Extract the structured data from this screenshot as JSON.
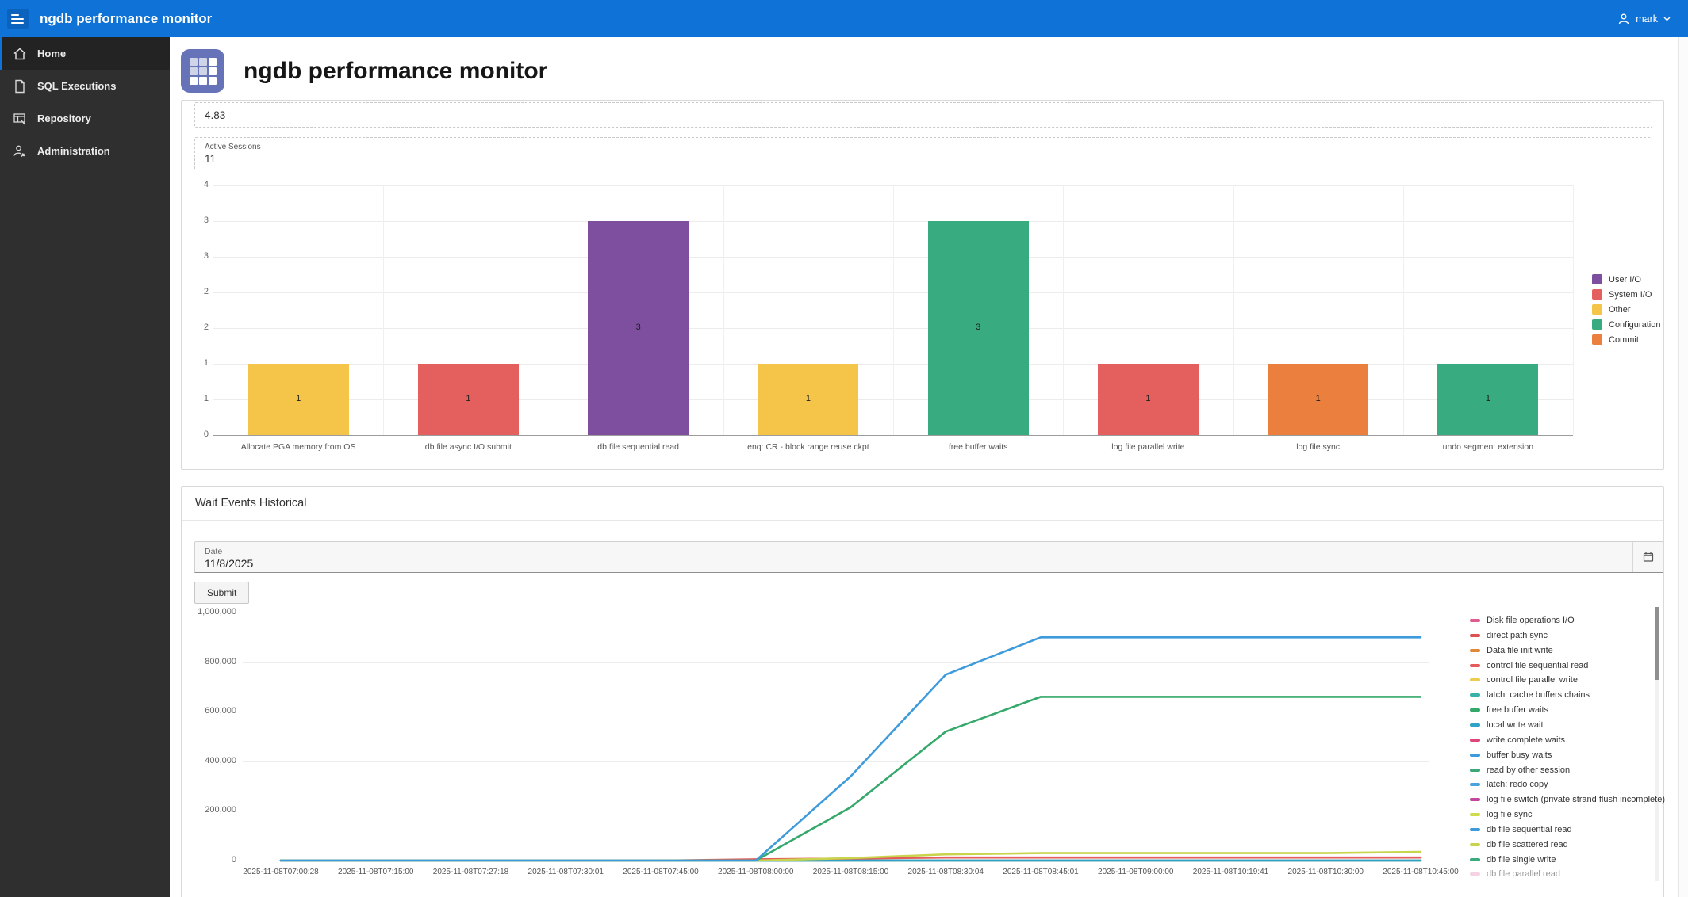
{
  "header": {
    "app_title": "ngdb performance monitor",
    "user": "mark"
  },
  "sidebar": {
    "items": [
      {
        "label": "Home",
        "icon": "home-icon",
        "active": true
      },
      {
        "label": "SQL Executions",
        "icon": "document-icon",
        "active": false
      },
      {
        "label": "Repository",
        "icon": "table-icon",
        "active": false
      },
      {
        "label": "Administration",
        "icon": "admin-user-icon",
        "active": false
      }
    ]
  },
  "page": {
    "title": "ngdb performance monitor",
    "icon": "grid-icon"
  },
  "metrics": {
    "top_box_value": "4.83",
    "active_sessions_label": "Active Sessions",
    "active_sessions_value": "11"
  },
  "wait_events": {
    "section_title": "Wait Events Historical",
    "date_label": "Date",
    "date_value": "11/8/2025",
    "calendar_icon": "calendar-icon",
    "submit_label": "Submit"
  },
  "colors": {
    "header_blue": "#0e72d6",
    "app_tile": "#6673b8",
    "sidebar_bg": "#2f2f2f"
  },
  "chart_data": [
    {
      "type": "bar",
      "title": "",
      "categories": [
        "Allocate PGA memory from OS",
        "db file async I/O submit",
        "db file sequential read",
        "enq: CR - block range reuse ckpt",
        "free buffer waits",
        "log file parallel write",
        "log file sync",
        "undo segment extension"
      ],
      "values": [
        1,
        1,
        3,
        1,
        3,
        1,
        1,
        1
      ],
      "groups": [
        "Other",
        "System I/O",
        "User I/O",
        "Other",
        "Configuration",
        "System I/O",
        "Commit",
        "Configuration"
      ],
      "ylim": [
        0,
        3.5
      ],
      "ytick_labels_top_to_bottom": [
        "4",
        "3",
        "3",
        "2",
        "2",
        "1",
        "1",
        "0"
      ],
      "grid": true,
      "legend_position": "right",
      "legend": [
        {
          "label": "User I/O",
          "color": "#7E4F9E"
        },
        {
          "label": "System I/O",
          "color": "#E4605E"
        },
        {
          "label": "Other",
          "color": "#F5C54A"
        },
        {
          "label": "Configuration",
          "color": "#38AB80"
        },
        {
          "label": "Commit",
          "color": "#EB7F3E"
        }
      ]
    },
    {
      "type": "line",
      "title": "",
      "x": [
        "2025-11-08T07:00:28",
        "2025-11-08T07:15:00",
        "2025-11-08T07:27:18",
        "2025-11-08T07:30:01",
        "2025-11-08T07:45:00",
        "2025-11-08T08:00:00",
        "2025-11-08T08:15:00",
        "2025-11-08T08:30:04",
        "2025-11-08T08:45:01",
        "2025-11-08T09:00:00",
        "2025-11-08T10:19:41",
        "2025-11-08T10:30:00",
        "2025-11-08T10:45:00"
      ],
      "ylim": [
        0,
        1000000
      ],
      "ytick_labels_top_to_bottom": [
        "1,000,000",
        "800,000",
        "600,000",
        "400,000",
        "200,000",
        "0"
      ],
      "grid": true,
      "legend_position": "right",
      "legend_scrollbar": true,
      "series": [
        {
          "name": "Disk file operations I/O",
          "color": "#E05C8E",
          "values": [
            0,
            0,
            0,
            0,
            0,
            0,
            0,
            0,
            0,
            0,
            0,
            0,
            0
          ]
        },
        {
          "name": "direct path sync",
          "color": "#DE5151",
          "values": [
            0,
            0,
            0,
            0,
            0,
            0,
            0,
            0,
            0,
            0,
            0,
            0,
            0
          ]
        },
        {
          "name": "Data file init write",
          "color": "#E2883B",
          "values": [
            0,
            0,
            0,
            0,
            0,
            0,
            0,
            0,
            0,
            0,
            0,
            0,
            0
          ]
        },
        {
          "name": "control file sequential read",
          "color": "#E45C5C",
          "values": [
            0,
            0,
            0,
            0,
            0,
            5000,
            8000,
            12000,
            12000,
            12000,
            12000,
            12000,
            12000
          ]
        },
        {
          "name": "control file parallel write",
          "color": "#EDCB4E",
          "values": [
            0,
            0,
            0,
            0,
            0,
            0,
            0,
            0,
            0,
            0,
            0,
            0,
            0
          ]
        },
        {
          "name": "latch: cache buffers chains",
          "color": "#38B1A8",
          "values": [
            0,
            0,
            0,
            0,
            0,
            0,
            0,
            0,
            0,
            0,
            0,
            0,
            0
          ]
        },
        {
          "name": "free buffer waits",
          "color": "#35A86B",
          "values": [
            0,
            0,
            0,
            0,
            0,
            0,
            215000,
            520000,
            660000,
            660000,
            660000,
            660000,
            660000
          ]
        },
        {
          "name": "local write wait",
          "color": "#2EA3C7",
          "values": [
            0,
            0,
            0,
            0,
            0,
            0,
            0,
            0,
            0,
            0,
            0,
            0,
            0
          ]
        },
        {
          "name": "write complete waits",
          "color": "#E04778",
          "values": [
            0,
            0,
            0,
            0,
            0,
            0,
            0,
            0,
            0,
            0,
            0,
            0,
            0
          ]
        },
        {
          "name": "buffer busy waits",
          "color": "#3E9BDB",
          "values": [
            0,
            0,
            0,
            0,
            0,
            0,
            0,
            0,
            0,
            0,
            0,
            0,
            0
          ]
        },
        {
          "name": "read by other session",
          "color": "#3CA878",
          "values": [
            0,
            0,
            0,
            0,
            0,
            0,
            0,
            0,
            0,
            0,
            0,
            0,
            0
          ]
        },
        {
          "name": "latch: redo copy",
          "color": "#4BA3DE",
          "values": [
            0,
            0,
            0,
            0,
            0,
            0,
            0,
            0,
            0,
            0,
            0,
            0,
            0
          ]
        },
        {
          "name": "log file switch (private strand flush incomplete)",
          "color": "#C2459E",
          "values": [
            0,
            0,
            0,
            0,
            0,
            0,
            0,
            0,
            0,
            0,
            0,
            0,
            0
          ]
        },
        {
          "name": "log file sync",
          "color": "#CEDB4A",
          "values": [
            0,
            0,
            0,
            0,
            0,
            0,
            0,
            0,
            0,
            0,
            0,
            0,
            0
          ]
        },
        {
          "name": "db file sequential read",
          "color": "#3E9BDB",
          "values": [
            0,
            0,
            0,
            0,
            0,
            0,
            340000,
            750000,
            900000,
            900000,
            900000,
            900000,
            900000
          ]
        },
        {
          "name": "db file scattered read",
          "color": "#C9D44C",
          "values": [
            0,
            0,
            0,
            0,
            0,
            0,
            10000,
            25000,
            30000,
            30000,
            30000,
            30000,
            35000
          ]
        },
        {
          "name": "db file single write",
          "color": "#3CAB7C",
          "values": [
            0,
            0,
            0,
            0,
            0,
            0,
            0,
            0,
            0,
            0,
            0,
            0,
            0
          ]
        },
        {
          "name": "db file parallel read",
          "color": "#EFA8C8",
          "values": [
            0,
            0,
            0,
            0,
            0,
            0,
            0,
            0,
            0,
            0,
            0,
            0,
            0
          ]
        }
      ],
      "z_order": [
        0,
        1,
        2,
        4,
        8,
        9,
        10,
        11,
        12,
        13,
        16,
        17,
        5,
        7,
        3,
        15,
        6,
        14
      ]
    }
  ]
}
